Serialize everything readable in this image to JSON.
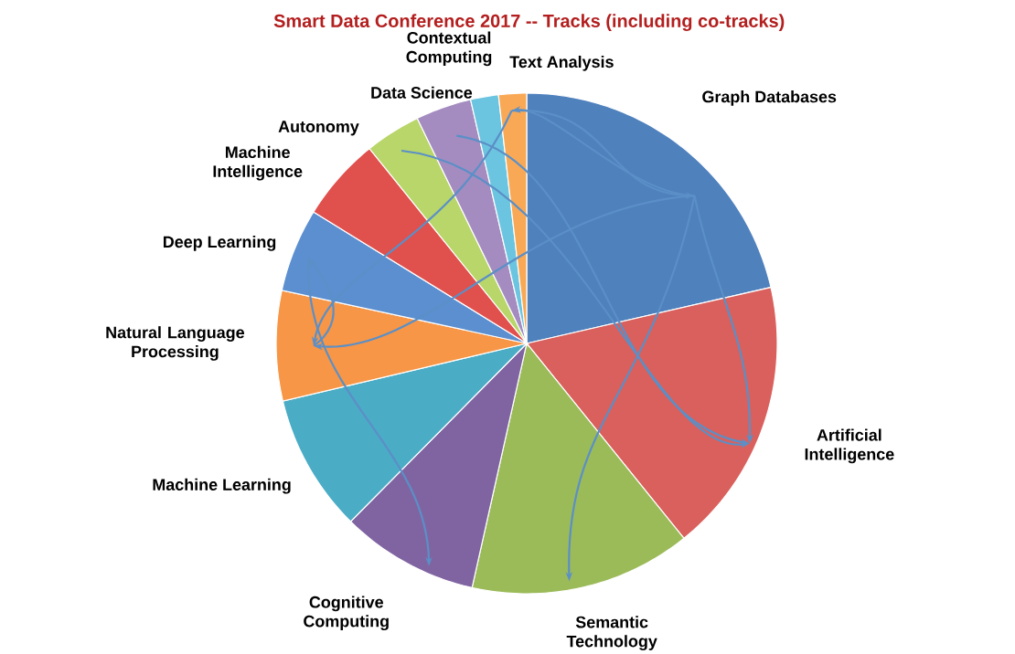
{
  "chart_data": {
    "type": "pie",
    "title": "Smart Data Conference 2017 -- Tracks (including co-tracks)",
    "categories": [
      "Graph Databases",
      "Artificial Intelligence",
      "Semantic Technology",
      "Cognitive Computing",
      "Machine Learning",
      "Natural Language Processing",
      "Deep Learning",
      "Machine Intelligence",
      "Autonomy",
      "Data Science",
      "Contextual Computing",
      "Text Analysis"
    ],
    "values": [
      21.4,
      17.8,
      14.3,
      8.9,
      8.9,
      7.1,
      5.4,
      5.4,
      3.6,
      3.6,
      1.8,
      1.8
    ],
    "colors": [
      "#4f81bd",
      "#d9605c",
      "#9bbb59",
      "#8064a2",
      "#4bacc6",
      "#f79646",
      "#5b8fd0",
      "#e0504d",
      "#b8d66a",
      "#a48cc0",
      "#6cc5e0",
      "#f9a956"
    ]
  }
}
